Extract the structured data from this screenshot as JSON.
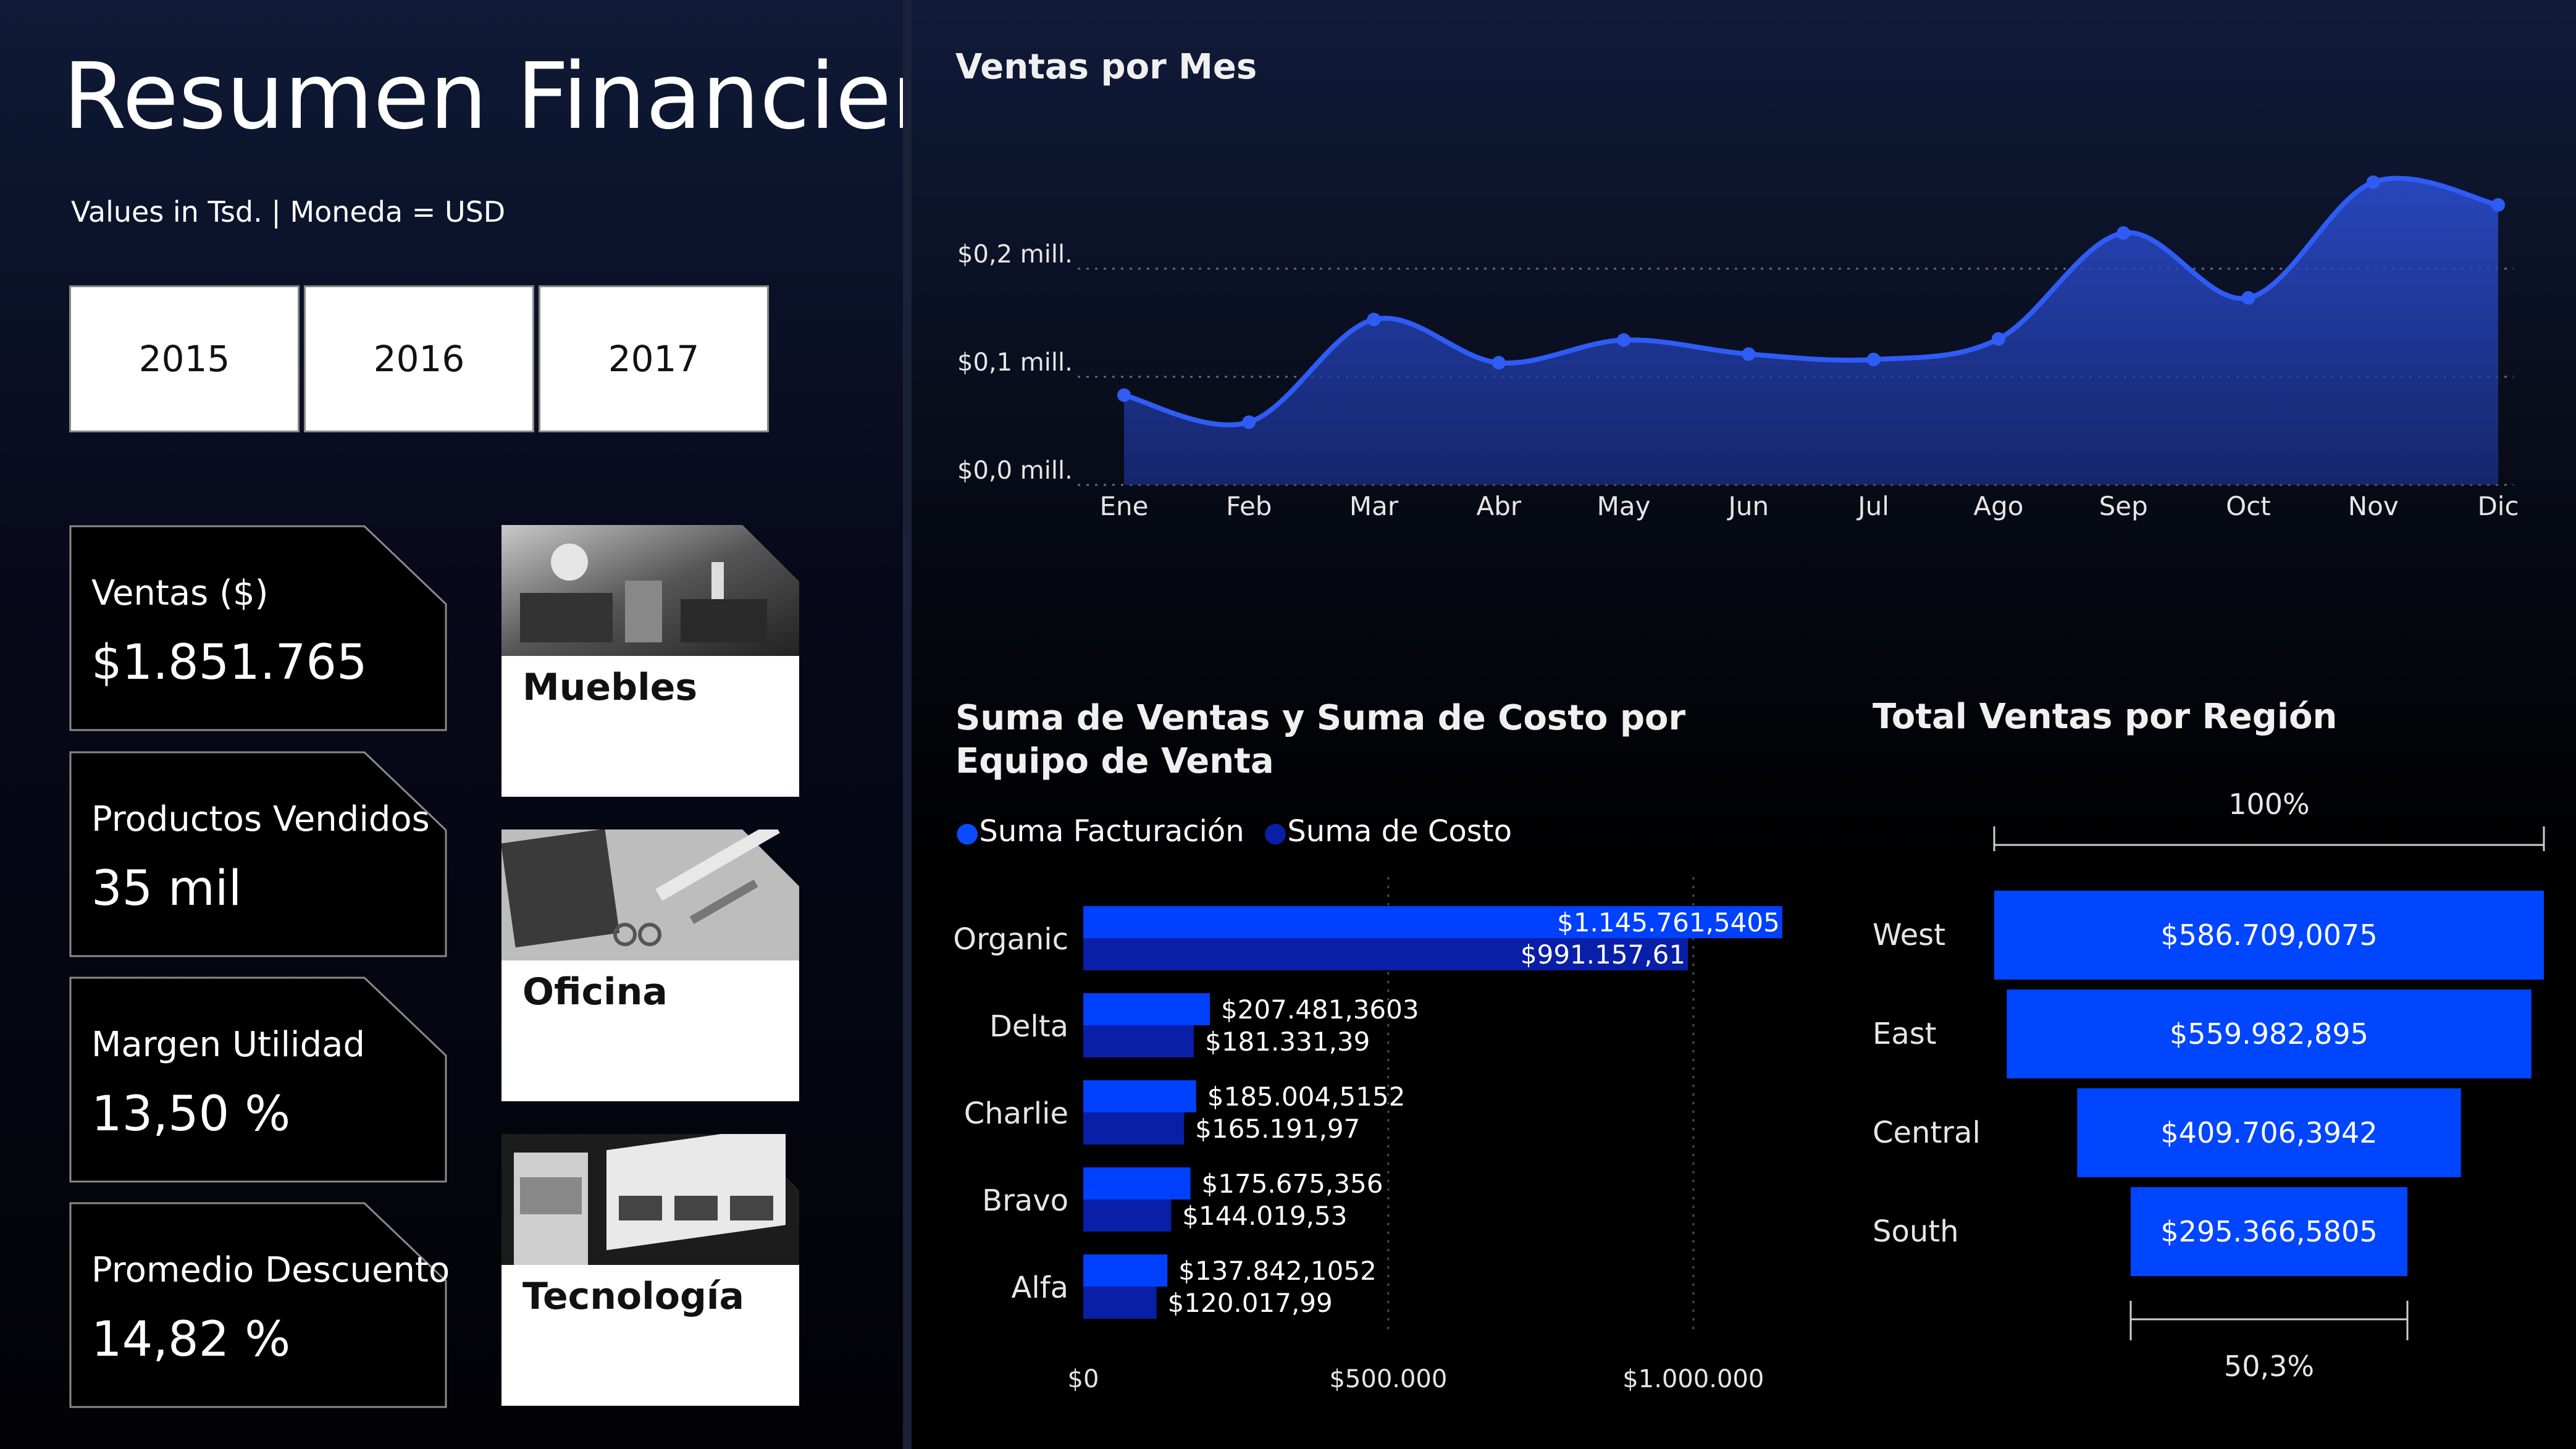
{
  "header": {
    "title": "Resumen Financiero",
    "subtitle": "Values in Tsd. | Moneda = USD"
  },
  "years": [
    "2015",
    "2016",
    "2017"
  ],
  "kpis": [
    {
      "label": "Ventas ($)",
      "value": "$1.851.765"
    },
    {
      "label": "Productos Vendidos",
      "value": "35 mil"
    },
    {
      "label": "Margen Utilidad",
      "value": "13,50 %"
    },
    {
      "label": "Promedio Descuento",
      "value": "14,82 %"
    }
  ],
  "categories": [
    {
      "label": "Muebles",
      "icon": "furniture-photo"
    },
    {
      "label": "Oficina",
      "icon": "office-supplies-photo"
    },
    {
      "label": "Tecnología",
      "icon": "technology-photo"
    }
  ],
  "colors": {
    "accent": "#2f5cf5",
    "bar_primary": "#0040ff",
    "bar_secondary": "#0a1fa8",
    "funnel": "#0045ff"
  },
  "chart_data": [
    {
      "type": "area",
      "title": "Ventas por Mes",
      "categories": [
        "Ene",
        "Feb",
        "Mar",
        "Abr",
        "May",
        "Jun",
        "Jul",
        "Ago",
        "Sep",
        "Oct",
        "Nov",
        "Dic"
      ],
      "values": [
        0.083,
        0.058,
        0.153,
        0.113,
        0.134,
        0.121,
        0.116,
        0.135,
        0.233,
        0.173,
        0.28,
        0.259
      ],
      "ylim": [
        0,
        0.3
      ],
      "ytick_values": [
        0,
        0.1,
        0.2
      ],
      "ytick_labels": [
        "$0,0 mill.",
        "$0,1 mill.",
        "$0,2 mill."
      ],
      "grid": true
    },
    {
      "type": "bar",
      "orientation": "horizontal",
      "title": "Suma de Ventas y Suma de Costo por Equipo de Venta",
      "categories": [
        "Organic",
        "Delta",
        "Charlie",
        "Bravo",
        "Alfa"
      ],
      "series": [
        {
          "name": "Suma Facturación",
          "values": [
            1145761.5405,
            207481.3603,
            185004.5152,
            175675.356,
            137842.1052
          ],
          "labels": [
            "$1.145.761,5405",
            "$207.481,3603",
            "$185.004,5152",
            "$175.675,356",
            "$137.842,1052"
          ]
        },
        {
          "name": "Suma de Costo",
          "values": [
            991157.61,
            181331.39,
            165191.97,
            144019.53,
            120017.99
          ],
          "labels": [
            "$991.157,61",
            "$181.331,39",
            "$165.191,97",
            "$144.019,53",
            "$120.017,99"
          ]
        }
      ],
      "xlim": [
        0,
        1150000
      ],
      "xtick_values": [
        0,
        500000,
        1000000
      ],
      "xtick_labels": [
        "$0",
        "$500.000",
        "$1.000.000"
      ],
      "legend_position": "top-left",
      "grid": true
    },
    {
      "type": "funnel",
      "title": "Total Ventas por Región",
      "categories": [
        "West",
        "East",
        "Central",
        "South"
      ],
      "values": [
        586709.0075,
        559982.895,
        409706.3942,
        295366.5805
      ],
      "labels": [
        "$586.709,0075",
        "$559.982,895",
        "$409.706,3942",
        "$295.366,5805"
      ],
      "top_percent_label": "100%",
      "bottom_percent_label": "50,3%"
    }
  ]
}
